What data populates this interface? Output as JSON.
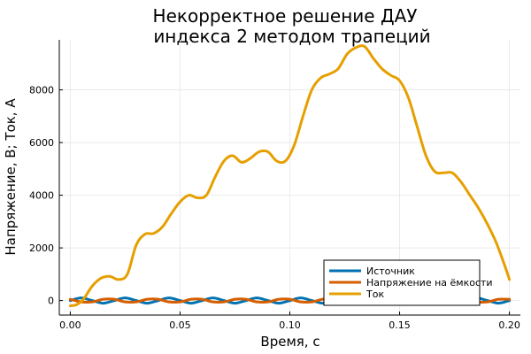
{
  "chart_data": {
    "type": "line",
    "title_line1": "Некорректное решение ДАУ",
    "title_line2": "индекса 2 методом трапеций",
    "xlabel": "Время, с",
    "ylabel": "Напряжение, В; Ток, А",
    "xlim": [
      -0.005,
      0.205
    ],
    "ylim": [
      -550,
      9900
    ],
    "grid": true,
    "legend_position": "bottom-right",
    "x_ticks": [
      {
        "value": 0.0,
        "label": "0.00"
      },
      {
        "value": 0.05,
        "label": "0.05"
      },
      {
        "value": 0.1,
        "label": "0.10"
      },
      {
        "value": 0.15,
        "label": "0.15"
      },
      {
        "value": 0.2,
        "label": "0.20"
      }
    ],
    "y_ticks": [
      {
        "value": 0,
        "label": "0"
      },
      {
        "value": 2000,
        "label": "2000"
      },
      {
        "value": 4000,
        "label": "4000"
      },
      {
        "value": 6000,
        "label": "6000"
      },
      {
        "value": 8000,
        "label": "8000"
      }
    ],
    "series": [
      {
        "name": "Источник",
        "color": "#0072b2",
        "x": [
          0.0,
          0.005,
          0.01,
          0.015,
          0.02,
          0.025,
          0.03,
          0.035,
          0.04,
          0.045,
          0.05,
          0.055,
          0.06,
          0.065,
          0.07,
          0.075,
          0.08,
          0.085,
          0.09,
          0.095,
          0.1,
          0.105,
          0.11,
          0.115,
          0.12,
          0.125,
          0.13,
          0.135,
          0.14,
          0.145,
          0.15,
          0.155,
          0.16,
          0.165,
          0.17,
          0.175,
          0.18,
          0.185,
          0.19,
          0.195,
          0.2
        ],
        "y": [
          0,
          100,
          0,
          -100,
          0,
          100,
          0,
          -100,
          0,
          100,
          0,
          -100,
          0,
          100,
          0,
          -100,
          0,
          100,
          0,
          -100,
          0,
          100,
          0,
          -100,
          0,
          100,
          0,
          -100,
          0,
          100,
          0,
          -100,
          0,
          100,
          0,
          -100,
          0,
          100,
          0,
          -100,
          0
        ]
      },
      {
        "name": "Напряжение на ёмкости",
        "color": "#d55e00",
        "x": [
          0.0,
          0.005,
          0.01,
          0.015,
          0.02,
          0.025,
          0.03,
          0.035,
          0.04,
          0.045,
          0.05,
          0.055,
          0.06,
          0.065,
          0.07,
          0.075,
          0.08,
          0.085,
          0.09,
          0.095,
          0.1,
          0.105,
          0.11,
          0.115,
          0.12,
          0.125,
          0.13,
          0.135,
          0.14,
          0.145,
          0.15,
          0.155,
          0.16,
          0.165,
          0.17,
          0.175,
          0.18,
          0.185,
          0.19,
          0.195,
          0.2
        ],
        "y": [
          50,
          -50,
          -50,
          50,
          50,
          -50,
          -50,
          50,
          50,
          -50,
          -50,
          50,
          50,
          -50,
          -50,
          50,
          50,
          -50,
          -50,
          50,
          50,
          -50,
          -50,
          50,
          50,
          -50,
          -50,
          50,
          50,
          -50,
          -50,
          50,
          50,
          -50,
          -50,
          50,
          50,
          -50,
          -50,
          50,
          50
        ]
      },
      {
        "name": "Ток",
        "color": "#e69f00",
        "x": [
          0.0,
          0.003,
          0.006,
          0.01,
          0.014,
          0.018,
          0.022,
          0.026,
          0.03,
          0.034,
          0.038,
          0.042,
          0.046,
          0.05,
          0.054,
          0.058,
          0.062,
          0.066,
          0.07,
          0.074,
          0.078,
          0.082,
          0.086,
          0.09,
          0.094,
          0.098,
          0.102,
          0.106,
          0.11,
          0.114,
          0.118,
          0.122,
          0.126,
          0.13,
          0.134,
          0.138,
          0.142,
          0.146,
          0.15,
          0.154,
          0.158,
          0.162,
          0.166,
          0.17,
          0.174,
          0.178,
          0.182,
          0.186,
          0.19,
          0.194,
          0.198,
          0.2
        ],
        "y": [
          -200,
          -150,
          50,
          550,
          850,
          920,
          800,
          1000,
          2100,
          2520,
          2550,
          2800,
          3300,
          3750,
          4000,
          3900,
          4000,
          4700,
          5300,
          5500,
          5250,
          5400,
          5650,
          5650,
          5300,
          5300,
          5900,
          7000,
          8000,
          8450,
          8600,
          8800,
          9350,
          9600,
          9650,
          9200,
          8800,
          8550,
          8350,
          7700,
          6600,
          5500,
          4900,
          4850,
          4850,
          4500,
          4000,
          3500,
          2900,
          2200,
          1300,
          800
        ]
      }
    ]
  }
}
